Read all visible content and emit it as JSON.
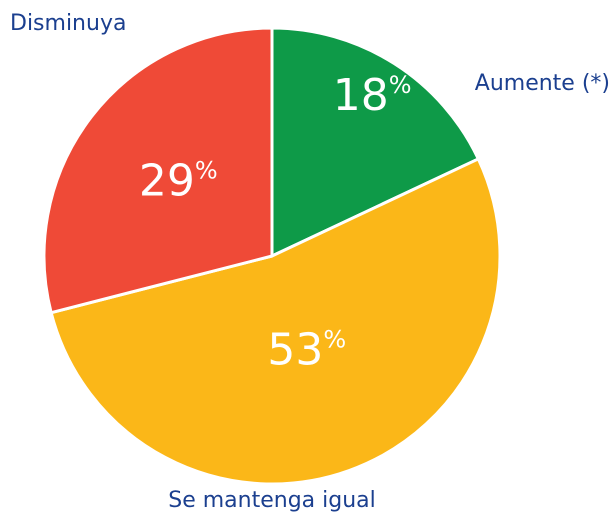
{
  "chart_data": {
    "type": "pie",
    "categories": [
      "Aumente (*)",
      "Se mantenga igual",
      "Disminuya"
    ],
    "values": [
      18,
      53,
      29
    ],
    "value_labels": [
      "18%",
      "53%",
      "29%"
    ],
    "colors": [
      "#0e9a48",
      "#fbb718",
      "#ef4a37"
    ]
  }
}
